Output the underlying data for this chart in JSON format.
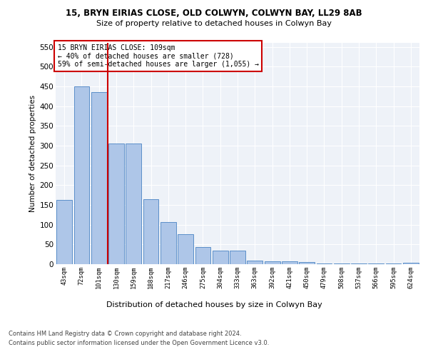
{
  "title1": "15, BRYN EIRIAS CLOSE, OLD COLWYN, COLWYN BAY, LL29 8AB",
  "title2": "Size of property relative to detached houses in Colwyn Bay",
  "xlabel": "Distribution of detached houses by size in Colwyn Bay",
  "ylabel": "Number of detached properties",
  "categories": [
    "43sqm",
    "72sqm",
    "101sqm",
    "130sqm",
    "159sqm",
    "188sqm",
    "217sqm",
    "246sqm",
    "275sqm",
    "304sqm",
    "333sqm",
    "363sqm",
    "392sqm",
    "421sqm",
    "450sqm",
    "479sqm",
    "508sqm",
    "537sqm",
    "566sqm",
    "595sqm",
    "624sqm"
  ],
  "values": [
    163,
    450,
    435,
    305,
    305,
    165,
    107,
    75,
    44,
    35,
    35,
    9,
    8,
    8,
    6,
    2,
    2,
    2,
    2,
    1,
    4
  ],
  "bar_color": "#aec6e8",
  "bar_edge_color": "#5b8fc9",
  "vline_x_index": 2.5,
  "vline_color": "#cc0000",
  "annotation_text": "15 BRYN EIRIAS CLOSE: 109sqm\n← 40% of detached houses are smaller (728)\n59% of semi-detached houses are larger (1,055) →",
  "annotation_box_color": "#ffffff",
  "annotation_box_edge_color": "#cc0000",
  "ylim": [
    0,
    560
  ],
  "yticks": [
    0,
    50,
    100,
    150,
    200,
    250,
    300,
    350,
    400,
    450,
    500,
    550
  ],
  "footer1": "Contains HM Land Registry data © Crown copyright and database right 2024.",
  "footer2": "Contains public sector information licensed under the Open Government Licence v3.0.",
  "bg_color": "#eef2f8",
  "grid_color": "#ffffff",
  "fig_bg_color": "#ffffff"
}
